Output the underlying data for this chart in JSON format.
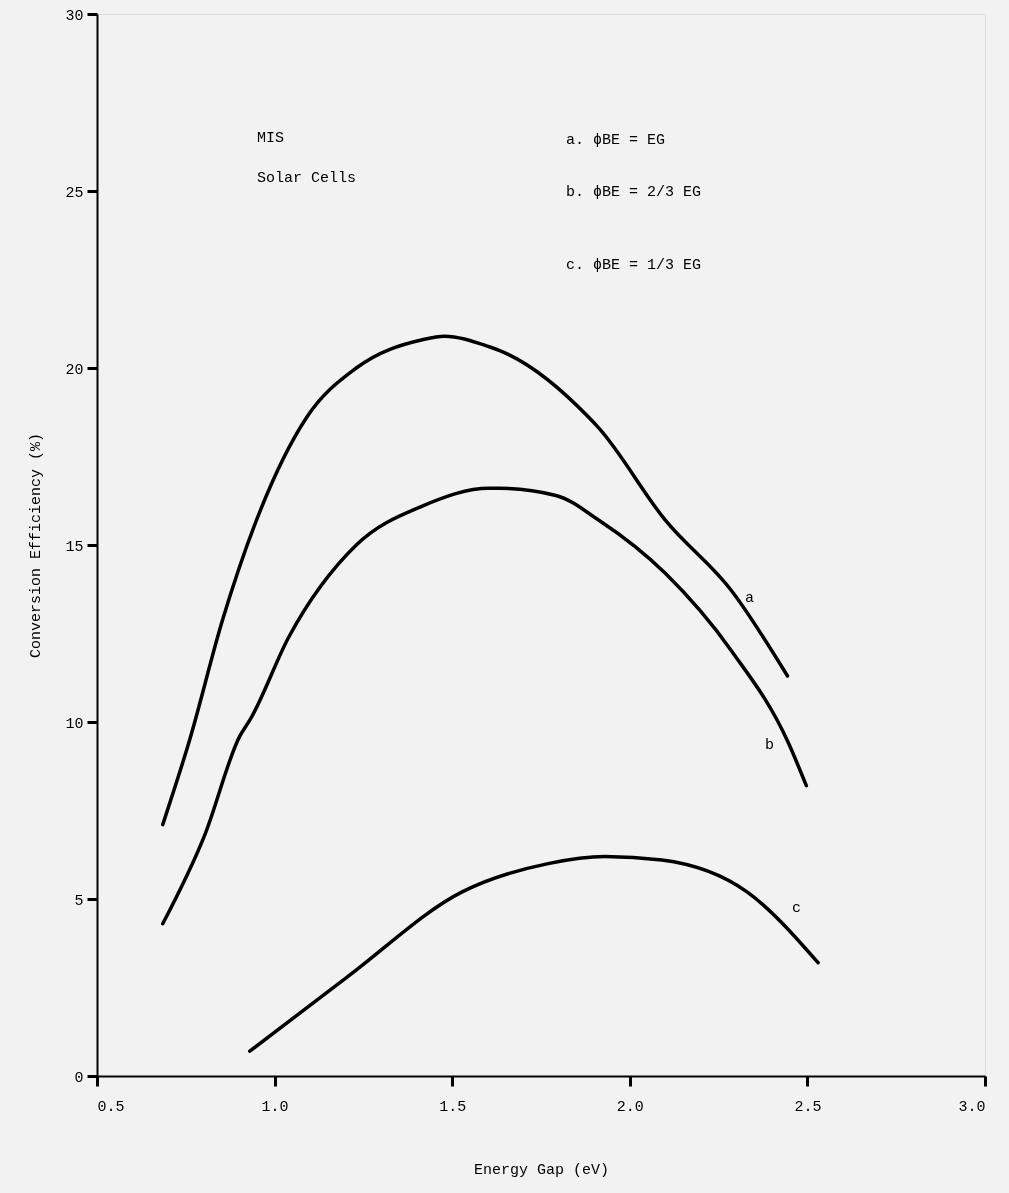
{
  "chart_data": {
    "type": "line",
    "xlabel": "Energy Gap (eV)",
    "ylabel": "Conversion Efficiency (%)",
    "xlim": [
      0.5,
      3.0
    ],
    "xticks": [
      {
        "value": 0.5,
        "label": "0.5"
      },
      {
        "value": 1.0,
        "label": "1.0"
      },
      {
        "value": 1.5,
        "label": "1.5"
      },
      {
        "value": 2.0,
        "label": "2.0"
      },
      {
        "value": 2.5,
        "label": "2.5"
      },
      {
        "value": 3.0,
        "label": "3.0"
      }
    ],
    "ylim": [
      0,
      30
    ],
    "yticks": [
      0,
      5,
      10,
      15,
      20,
      25,
      30
    ],
    "marker": "none",
    "line_style": "solid",
    "series": [
      {
        "color": "#000000",
        "x": [
          0.685,
          0.761,
          0.854,
          0.949,
          1.09,
          1.23,
          1.416,
          1.478,
          1.604,
          1.632,
          1.885,
          1.913,
          2.1,
          2.287,
          2.444
        ],
        "values": [
          7.1,
          9.5,
          12.9,
          15.7,
          18.6,
          20.0,
          20.8,
          20.9,
          20.6,
          20.5,
          18.6,
          18.3,
          15.7,
          13.7,
          11.3
        ]
      },
      {
        "color": "#000000",
        "x": [
          0.685,
          0.803,
          0.902,
          0.933,
          1.04,
          1.23,
          1.416,
          1.604,
          1.632,
          1.792,
          1.913,
          2.1,
          2.287,
          2.447,
          2.497
        ],
        "values": [
          4.3,
          6.8,
          9.6,
          10.1,
          12.4,
          15.0,
          16.1,
          16.6,
          16.6,
          16.4,
          15.7,
          14.2,
          12.0,
          9.4,
          8.2
        ]
      },
      {
        "color": "#000000",
        "x": [
          0.93,
          1.205,
          1.528,
          1.77,
          1.93,
          2.09,
          2.33,
          2.53
        ],
        "values": [
          0.7,
          2.8,
          5.2,
          6.0,
          6.2,
          6.1,
          5.2,
          3.2
        ]
      }
    ],
    "annotations": [
      "a",
      "b",
      "c",
      "MIS",
      "Solar Cells",
      "a.  ϕBE = EG",
      "b.  ϕBE = 2/3 EG",
      "c.  ϕBE = 1/3 EG"
    ]
  }
}
